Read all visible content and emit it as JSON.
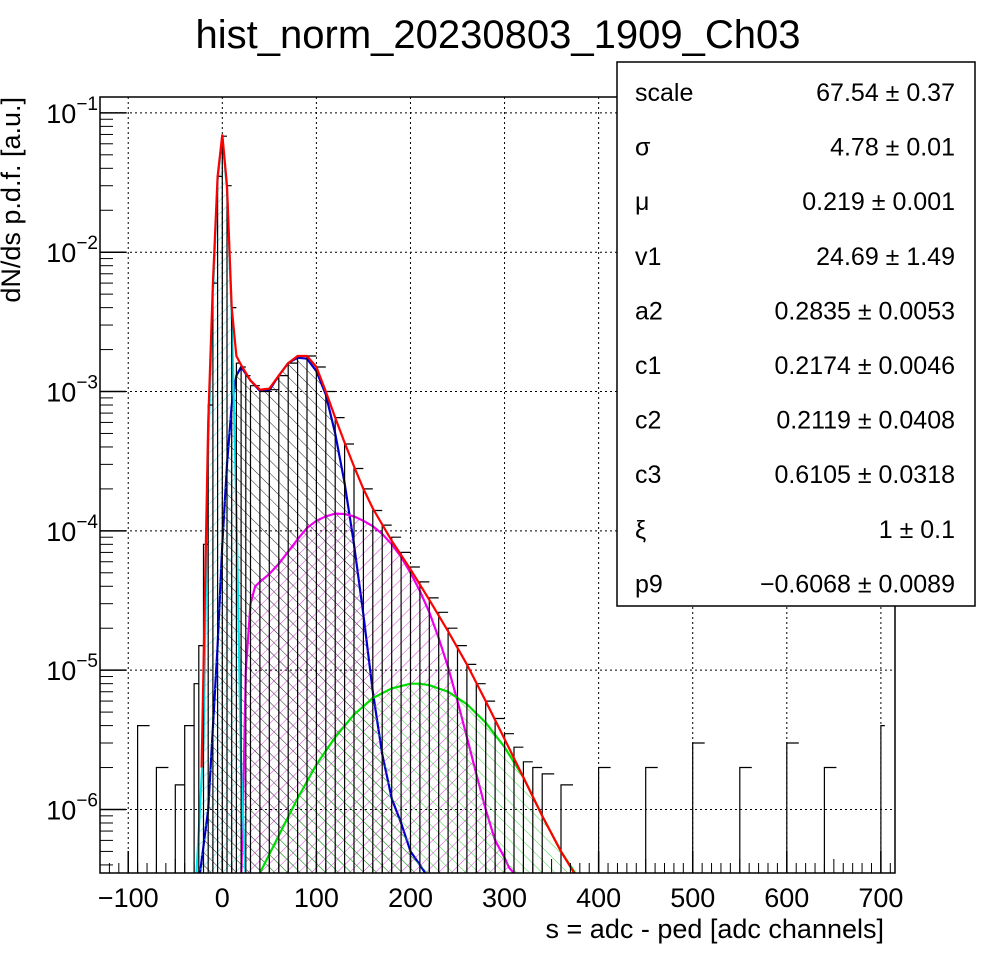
{
  "chart_data": {
    "type": "line",
    "title": "hist_norm_20230803_1909_Ch03",
    "xlabel": "s = adc - ped [adc channels]",
    "ylabel": "dN/ds p.d.f. [a.u.]",
    "xlim": [
      -130,
      715
    ],
    "ylim": [
      3.5e-07,
      0.13
    ],
    "yscale": "log",
    "grid": true,
    "x_ticks": [
      {
        "value": -100,
        "label": "−100"
      },
      {
        "value": 0,
        "label": "0"
      },
      {
        "value": 100,
        "label": "100"
      },
      {
        "value": 200,
        "label": "200"
      },
      {
        "value": 300,
        "label": "300"
      },
      {
        "value": 400,
        "label": "400"
      },
      {
        "value": 500,
        "label": "500"
      },
      {
        "value": 600,
        "label": "600"
      },
      {
        "value": 700,
        "label": "700"
      }
    ],
    "y_ticks": [
      {
        "value": 1e-06,
        "base": "10",
        "exp": "−6"
      },
      {
        "value": 1e-05,
        "base": "10",
        "exp": "−5"
      },
      {
        "value": 0.0001,
        "base": "10",
        "exp": "−4"
      },
      {
        "value": 0.001,
        "base": "10",
        "exp": "−3"
      },
      {
        "value": 0.01,
        "base": "10",
        "exp": "−2"
      },
      {
        "value": 0.1,
        "base": "10",
        "exp": "−1"
      }
    ],
    "series": [
      {
        "color": "#000000",
        "style": "histogram",
        "x": [
          -90,
          -70,
          -50,
          -40,
          -30,
          -25,
          -20,
          -15,
          -10,
          -5,
          0,
          5,
          10,
          15,
          20,
          25,
          30,
          40,
          50,
          60,
          70,
          80,
          90,
          100,
          110,
          120,
          130,
          140,
          150,
          160,
          170,
          180,
          190,
          200,
          210,
          220,
          230,
          240,
          250,
          260,
          270,
          280,
          290,
          300,
          310,
          320,
          330,
          340,
          360,
          400,
          450,
          500,
          550,
          600,
          640,
          700
        ],
        "values": [
          4e-06,
          2e-06,
          1.5e-06,
          4e-06,
          8e-06,
          1.5e-05,
          8e-05,
          0.0008,
          0.006,
          0.035,
          0.068,
          0.03,
          0.004,
          0.0016,
          0.0015,
          0.0013,
          0.0011,
          0.001,
          0.00103,
          0.0013,
          0.0016,
          0.0018,
          0.0018,
          0.0015,
          0.001,
          0.00065,
          0.00042,
          0.00028,
          0.0002,
          0.00014,
          0.00011,
          9e-05,
          7e-05,
          5.5e-05,
          4.3e-05,
          3.3e-05,
          2.6e-05,
          2e-05,
          1.5e-05,
          1.1e-05,
          8e-06,
          6e-06,
          4.5e-06,
          3.5e-06,
          2.8e-06,
          2.2e-06,
          2e-06,
          1.8e-06,
          1.5e-06,
          2e-06,
          2e-06,
          3e-06,
          2e-06,
          3e-06,
          2e-06,
          4e-06
        ]
      },
      {
        "color": "#ff0000",
        "style": "line",
        "x": [
          -22,
          -15,
          -10,
          -5,
          0,
          5,
          10,
          15,
          20,
          30,
          40,
          50,
          60,
          70,
          80,
          90,
          100,
          110,
          120,
          130,
          140,
          150,
          160,
          180,
          200,
          220,
          240,
          260,
          280,
          300,
          320,
          340,
          360,
          380
        ],
        "values": [
          2e-06,
          0.0006,
          0.006,
          0.035,
          0.07,
          0.03,
          0.004,
          0.0018,
          0.00155,
          0.0012,
          0.00103,
          0.00105,
          0.0013,
          0.0016,
          0.0018,
          0.0018,
          0.0015,
          0.001,
          0.00065,
          0.00043,
          0.00029,
          0.0002,
          0.000145,
          8.5e-05,
          5.3e-05,
          3.2e-05,
          1.9e-05,
          1.1e-05,
          6e-06,
          3.2e-06,
          1.7e-06,
          9e-07,
          5e-07,
          3e-07
        ]
      },
      {
        "color": "#00e5ee",
        "style": "fill",
        "fill": "#2ad4e8",
        "x": [
          -28,
          -20,
          -15,
          -10,
          -5,
          0,
          5,
          10,
          15,
          20,
          25
        ],
        "values": [
          3e-07,
          3e-06,
          0.0004,
          0.005,
          0.033,
          0.068,
          0.028,
          0.0035,
          0.00015,
          2e-06,
          3e-07
        ]
      },
      {
        "color": "#0000cc",
        "style": "fill",
        "fill": "#000000",
        "x": [
          -25,
          -15,
          -5,
          0,
          5,
          10,
          15,
          20,
          30,
          40,
          50,
          60,
          70,
          80,
          90,
          100,
          110,
          120,
          130,
          140,
          150,
          160,
          170,
          180,
          190,
          200,
          210,
          222
        ],
        "values": [
          3e-07,
          1e-06,
          1.5e-05,
          8e-05,
          0.0003,
          0.0008,
          0.0013,
          0.0015,
          0.0012,
          0.00101,
          0.00102,
          0.0013,
          0.0016,
          0.00175,
          0.00172,
          0.0014,
          0.00095,
          0.0005,
          0.00022,
          8e-05,
          2.5e-05,
          7e-06,
          2.5e-06,
          1.2e-06,
          8e-07,
          5e-07,
          4e-07,
          3e-07
        ]
      },
      {
        "color": "#ee00ee",
        "style": "fill",
        "fill": "#cc22cc",
        "x": [
          20,
          22,
          25,
          30,
          35,
          40,
          50,
          60,
          70,
          80,
          90,
          100,
          110,
          120,
          130,
          140,
          150,
          160,
          170,
          180,
          190,
          200,
          210,
          220,
          230,
          240,
          250,
          260,
          270,
          280,
          290,
          300,
          305,
          310
        ],
        "values": [
          3e-07,
          1e-06,
          1e-05,
          3e-05,
          4e-05,
          4.3e-05,
          4.9e-05,
          5.8e-05,
          7.1e-05,
          8.7e-05,
          0.000105,
          0.000118,
          0.000127,
          0.000133,
          0.000132,
          0.000127,
          0.000118,
          0.000108,
          9.5e-05,
          8e-05,
          6.5e-05,
          5e-05,
          3.7e-05,
          2.6e-05,
          1.7e-05,
          1.05e-05,
          6e-06,
          3.3e-06,
          1.8e-06,
          1e-06,
          6e-07,
          4.5e-07,
          3.8e-07,
          3.5e-07
        ]
      },
      {
        "color": "#00dd00",
        "style": "fill",
        "fill": "#22cc22",
        "x": [
          40,
          60,
          80,
          100,
          120,
          140,
          160,
          180,
          200,
          210,
          220,
          240,
          260,
          280,
          300,
          320,
          340,
          360,
          375
        ],
        "values": [
          3.5e-07,
          6.5e-07,
          1.2e-06,
          2.1e-06,
          3.3e-06,
          4.8e-06,
          6.3e-06,
          7.4e-06,
          8e-06,
          8e-06,
          7.8e-06,
          7e-06,
          5.7e-06,
          4.2e-06,
          2.8e-06,
          1.7e-06,
          9e-07,
          5e-07,
          3.5e-07
        ]
      }
    ]
  },
  "stats": [
    {
      "name": "scale",
      "value": "67.54",
      "pm": "±",
      "err": "0.37"
    },
    {
      "name": "σ",
      "value": "4.78",
      "pm": "±",
      "err": "0.01"
    },
    {
      "name": "μ",
      "value": "0.219",
      "pm": "±",
      "err": "0.001"
    },
    {
      "name": "v1",
      "value": "24.69",
      "pm": "±",
      "err": "1.49"
    },
    {
      "name": "a2",
      "value": "0.2835",
      "pm": "±",
      "err": "0.0053"
    },
    {
      "name": "c1",
      "value": "0.2174",
      "pm": "±",
      "err": "0.0046"
    },
    {
      "name": "c2",
      "value": "0.2119",
      "pm": "±",
      "err": "0.0408"
    },
    {
      "name": "c3",
      "value": "0.6105",
      "pm": "±",
      "err": "0.0318"
    },
    {
      "name": "ξ",
      "value": "1",
      "pm": "±",
      "err": "0.1"
    },
    {
      "name": "p9",
      "value": "−0.6068",
      "pm": "±",
      "err": "0.0089"
    }
  ]
}
